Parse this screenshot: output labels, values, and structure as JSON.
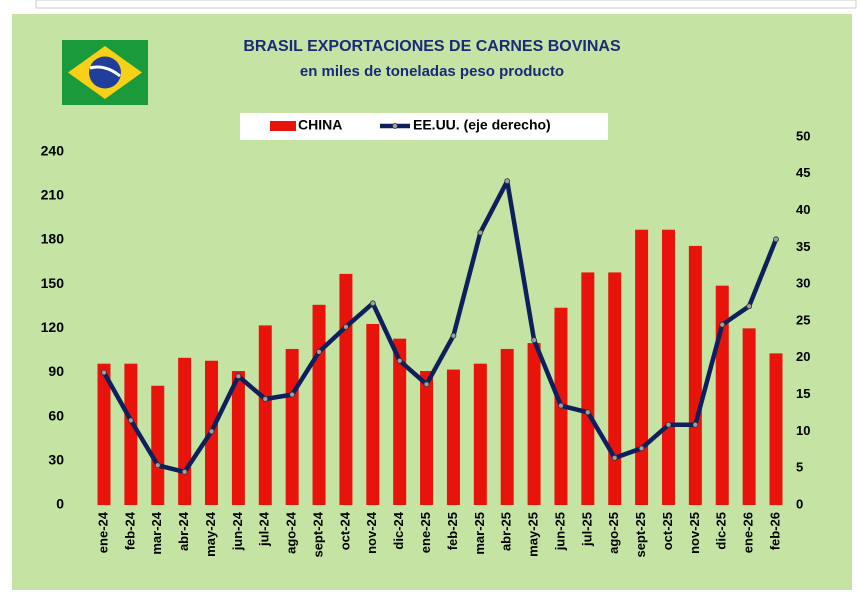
{
  "chart_data": {
    "type": "bar",
    "title": "BRASIL EXPORTACIONES DE CARNES BOVINAS",
    "subtitle": "en miles de toneladas peso producto",
    "categories": [
      "ene-24",
      "feb-24",
      "mar-24",
      "abr-24",
      "may-24",
      "jun-24",
      "jul-24",
      "ago-24",
      "sept-24",
      "oct-24",
      "nov-24",
      "dic-24",
      "ene-25",
      "feb-25",
      "mar-25",
      "abr-25",
      "may-25",
      "jun-25",
      "jul-25",
      "ago-25",
      "sept-25",
      "oct-25",
      "nov-25",
      "dic-25",
      "ene-26",
      "feb-26"
    ],
    "series": [
      {
        "name": "CHINA",
        "type": "bar",
        "color": "#e8140c",
        "values": [
          96,
          96,
          81,
          100,
          98,
          91,
          122,
          106,
          136,
          157,
          123,
          113,
          91,
          92,
          96,
          106,
          110,
          134,
          158,
          158,
          187,
          187,
          176,
          149,
          120,
          103
        ]
      },
      {
        "name": "EE.UU. (eje derecho)",
        "type": "line",
        "axis": "y2",
        "color": "#0d1f5c",
        "values": [
          18,
          11.5,
          5.4,
          4.5,
          10,
          17.5,
          14.4,
          15,
          20.8,
          24.2,
          27.4,
          19.6,
          16.4,
          23,
          37,
          44,
          22.4,
          13.5,
          12.6,
          6.4,
          7.7,
          10.9,
          10.9,
          24.5,
          27,
          36.1
        ]
      }
    ],
    "ylim": [
      0,
      250
    ],
    "yticks": [
      0,
      30,
      60,
      90,
      120,
      150,
      180,
      210,
      240
    ],
    "y2lim": [
      0,
      50
    ],
    "y2ticks": [
      0,
      5,
      10,
      15,
      20,
      25,
      30,
      35,
      40,
      45,
      50
    ],
    "legend": "top"
  }
}
